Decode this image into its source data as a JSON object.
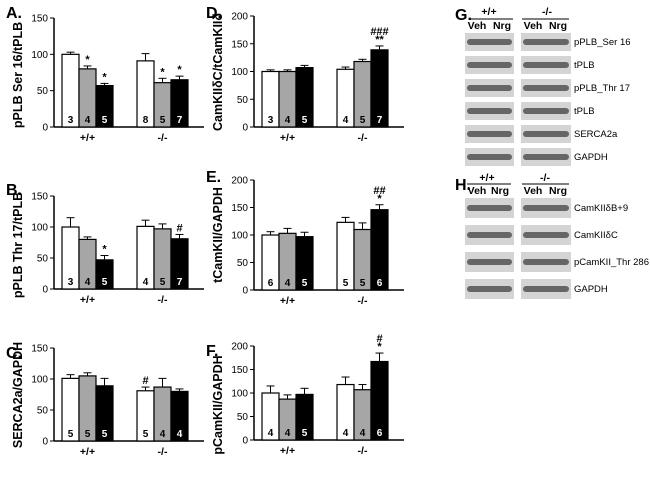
{
  "colors": {
    "veh": "#ffffff",
    "nrg": "#a6a6a6",
    "dark": "#000000"
  },
  "group_labels": [
    "+/+",
    "-/-"
  ],
  "chart_data": [
    {
      "id": "A",
      "type": "bar",
      "title": "A.",
      "ylabel": "pPLB Ser 16/tPLB",
      "ylim": [
        0,
        150
      ],
      "yticks": [
        0,
        50,
        100,
        150
      ],
      "categories": [
        "+/+",
        "-/-"
      ],
      "series": [
        {
          "name": "Veh",
          "values": [
            100,
            91
          ]
        },
        {
          "name": "Nrg (gray)",
          "values": [
            80,
            61
          ]
        },
        {
          "name": "Nrg (black)",
          "values": [
            57,
            65
          ]
        }
      ],
      "errors": [
        [
          3,
          10
        ],
        [
          4,
          6
        ],
        [
          3,
          5
        ]
      ],
      "n": [
        [
          "3",
          "8"
        ],
        [
          "4",
          "5"
        ],
        [
          "5",
          "7"
        ]
      ],
      "annotations": [
        [
          "",
          ""
        ],
        [
          "*",
          "*"
        ],
        [
          "*",
          "*"
        ]
      ]
    },
    {
      "id": "B",
      "type": "bar",
      "title": "B.",
      "ylabel": "pPLB Thr 17/tPLB",
      "ylim": [
        0,
        150
      ],
      "yticks": [
        0,
        50,
        100,
        150
      ],
      "categories": [
        "+/+",
        "-/-"
      ],
      "series": [
        {
          "name": "Veh",
          "values": [
            100,
            101
          ]
        },
        {
          "name": "Nrg (gray)",
          "values": [
            80,
            97
          ]
        },
        {
          "name": "Nrg (black)",
          "values": [
            47,
            81
          ]
        }
      ],
      "errors": [
        [
          15,
          10
        ],
        [
          4,
          8
        ],
        [
          7,
          7
        ]
      ],
      "n": [
        [
          "3",
          "4"
        ],
        [
          "4",
          "5"
        ],
        [
          "5",
          "7"
        ]
      ],
      "annotations": [
        [
          "",
          ""
        ],
        [
          "",
          ""
        ],
        [
          "*",
          "#"
        ]
      ]
    },
    {
      "id": "C",
      "type": "bar",
      "title": "C.",
      "ylabel": "SERCA2a/GAPDH",
      "ylim": [
        0,
        150
      ],
      "yticks": [
        0,
        50,
        100,
        150
      ],
      "categories": [
        "+/+",
        "-/-"
      ],
      "series": [
        {
          "name": "Veh",
          "values": [
            101,
            81
          ]
        },
        {
          "name": "Nrg (gray)",
          "values": [
            105,
            87
          ]
        },
        {
          "name": "Nrg (black)",
          "values": [
            89,
            80
          ]
        }
      ],
      "errors": [
        [
          6,
          6
        ],
        [
          5,
          14
        ],
        [
          12,
          4
        ]
      ],
      "n": [
        [
          "5",
          "5"
        ],
        [
          "5",
          "4"
        ],
        [
          "5",
          "4"
        ]
      ],
      "annotations": [
        [
          "",
          "#"
        ],
        [
          "",
          ""
        ],
        [
          "",
          ""
        ]
      ]
    },
    {
      "id": "D",
      "type": "bar",
      "title": "D.",
      "ylabel": "CamKIIδC/tCamKIIδ",
      "ylim": [
        0,
        200
      ],
      "yticks": [
        0,
        50,
        100,
        150,
        200
      ],
      "categories": [
        "+/+",
        "-/-"
      ],
      "series": [
        {
          "name": "Veh",
          "values": [
            100,
            104
          ]
        },
        {
          "name": "Nrg (gray)",
          "values": [
            100,
            118
          ]
        },
        {
          "name": "Nrg (black)",
          "values": [
            107,
            139
          ]
        }
      ],
      "errors": [
        [
          3,
          4
        ],
        [
          3,
          4
        ],
        [
          4,
          7
        ]
      ],
      "n": [
        [
          "3",
          "4"
        ],
        [
          "4",
          "5"
        ],
        [
          "5",
          "7"
        ]
      ],
      "annotations": [
        [
          "",
          ""
        ],
        [
          "",
          ""
        ],
        [
          "",
          "**\n###"
        ]
      ]
    },
    {
      "id": "E",
      "type": "bar",
      "title": "E.",
      "ylabel": "tCamKII/GAPDH",
      "ylim": [
        0,
        200
      ],
      "yticks": [
        0,
        50,
        100,
        150,
        200
      ],
      "categories": [
        "+/+",
        "-/-"
      ],
      "series": [
        {
          "name": "Veh",
          "values": [
            100,
            123
          ]
        },
        {
          "name": "Nrg (gray)",
          "values": [
            103,
            110
          ]
        },
        {
          "name": "Nrg (black)",
          "values": [
            97,
            146
          ]
        }
      ],
      "errors": [
        [
          6,
          9
        ],
        [
          9,
          12
        ],
        [
          8,
          9
        ]
      ],
      "n": [
        [
          "6",
          "5"
        ],
        [
          "4",
          "5"
        ],
        [
          "5",
          "6"
        ]
      ],
      "annotations": [
        [
          "",
          ""
        ],
        [
          "",
          ""
        ],
        [
          "",
          "*\n##"
        ]
      ]
    },
    {
      "id": "F",
      "type": "bar",
      "title": "F.",
      "ylabel": "pCamKII/GAPDH",
      "ylim": [
        0,
        200
      ],
      "yticks": [
        0,
        50,
        100,
        150,
        200
      ],
      "categories": [
        "+/+",
        "-/-"
      ],
      "series": [
        {
          "name": "Veh",
          "values": [
            100,
            118
          ]
        },
        {
          "name": "Nrg (gray)",
          "values": [
            87,
            107
          ]
        },
        {
          "name": "Nrg (black)",
          "values": [
            97,
            167
          ]
        }
      ],
      "errors": [
        [
          15,
          16
        ],
        [
          9,
          11
        ],
        [
          13,
          18
        ]
      ],
      "n": [
        [
          "4",
          "4"
        ],
        [
          "4",
          "4"
        ],
        [
          "5",
          "6"
        ]
      ],
      "annotations": [
        [
          "",
          ""
        ],
        [
          "",
          ""
        ],
        [
          "",
          "*\n#"
        ]
      ]
    }
  ],
  "blots": {
    "G": {
      "title": "G.",
      "geno": [
        "+/+",
        "-/-"
      ],
      "treat": [
        "Veh",
        "Nrg",
        "Veh",
        "Nrg"
      ],
      "labels": [
        "pPLB_Ser 16",
        "tPLB",
        "pPLB_Thr 17",
        "tPLB",
        "SERCA2a",
        "GAPDH"
      ]
    },
    "H": {
      "title": "H.",
      "geno": [
        "+/+",
        "-/-"
      ],
      "treat": [
        "Veh",
        "Nrg",
        "Veh",
        "Nrg"
      ],
      "labels": [
        "CamKIIδB+9",
        "CamKIIδC",
        "pCamKII_Thr 286",
        "GAPDH"
      ]
    }
  }
}
